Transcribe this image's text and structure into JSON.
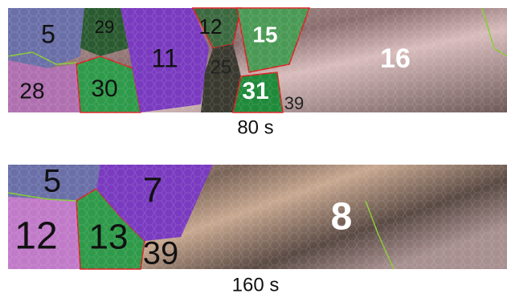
{
  "panels": [
    {
      "labels": [
        "5",
        "29",
        "11",
        "12",
        "15",
        "25",
        "16",
        "28",
        "30",
        "31",
        "39"
      ],
      "caption": "80 s"
    },
    {
      "labels": [
        "5",
        "7",
        "8",
        "12",
        "13",
        "39"
      ],
      "caption": "160 s"
    }
  ]
}
